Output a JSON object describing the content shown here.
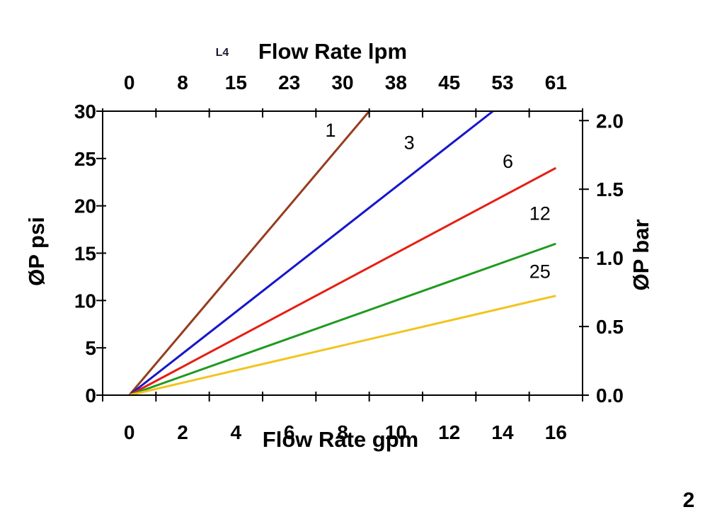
{
  "chart_data": {
    "type": "line",
    "title_top": "Flow Rate lpm",
    "annotation_l4": "L4",
    "xlabel_bottom": "Flow Rate gpm",
    "ylabel_left": "ØP psi",
    "ylabel_right": "ØP bar",
    "grid": false,
    "axis_color": "#000000",
    "x_gpm": {
      "axis_min": -1,
      "axis_max": 17,
      "tick_positions": [
        -1,
        1,
        3,
        5,
        7,
        9,
        11,
        13,
        15,
        17
      ],
      "label_positions": [
        0,
        2,
        4,
        6,
        8,
        10,
        12,
        14,
        16
      ],
      "labels": [
        "0",
        "2",
        "4",
        "6",
        "8",
        "10",
        "12",
        "14",
        "16"
      ]
    },
    "x_lpm": {
      "labels": [
        "0",
        "8",
        "15",
        "23",
        "30",
        "38",
        "45",
        "53",
        "61"
      ]
    },
    "y_psi": {
      "axis_min": 0,
      "axis_max": 30,
      "tick_positions": [
        0,
        5,
        10,
        15,
        20,
        25,
        30
      ],
      "labels": [
        "0",
        "5",
        "10",
        "15",
        "20",
        "25",
        "30"
      ]
    },
    "y_bar": {
      "psi_per_bar": 14.5038,
      "tick_positions": [
        0.0,
        0.5,
        1.0,
        1.5,
        2.0
      ],
      "labels": [
        "0.0",
        "0.5",
        "1.0",
        "1.5",
        "2.0"
      ]
    },
    "series": [
      {
        "name": "1",
        "color": "#963c1e",
        "points": [
          [
            0,
            0
          ],
          [
            9.0,
            30
          ]
        ],
        "label_at": [
          7.55,
          27.3
        ]
      },
      {
        "name": "3",
        "color": "#1616cc",
        "points": [
          [
            0,
            0
          ],
          [
            13.64,
            30
          ]
        ],
        "label_at": [
          10.5,
          26.0
        ]
      },
      {
        "name": "6",
        "color": "#e61e14",
        "points": [
          [
            0,
            0
          ],
          [
            16,
            24.0
          ]
        ],
        "label_at": [
          14.2,
          24.0
        ]
      },
      {
        "name": "12",
        "color": "#1f9a1f",
        "points": [
          [
            0,
            0
          ],
          [
            16,
            16.0
          ]
        ],
        "label_at": [
          15.4,
          18.5
        ]
      },
      {
        "name": "25",
        "color": "#f2c41e",
        "points": [
          [
            0,
            0
          ],
          [
            16,
            10.5
          ]
        ],
        "label_at": [
          15.4,
          12.4
        ]
      }
    ]
  },
  "corner_glyph": "2"
}
